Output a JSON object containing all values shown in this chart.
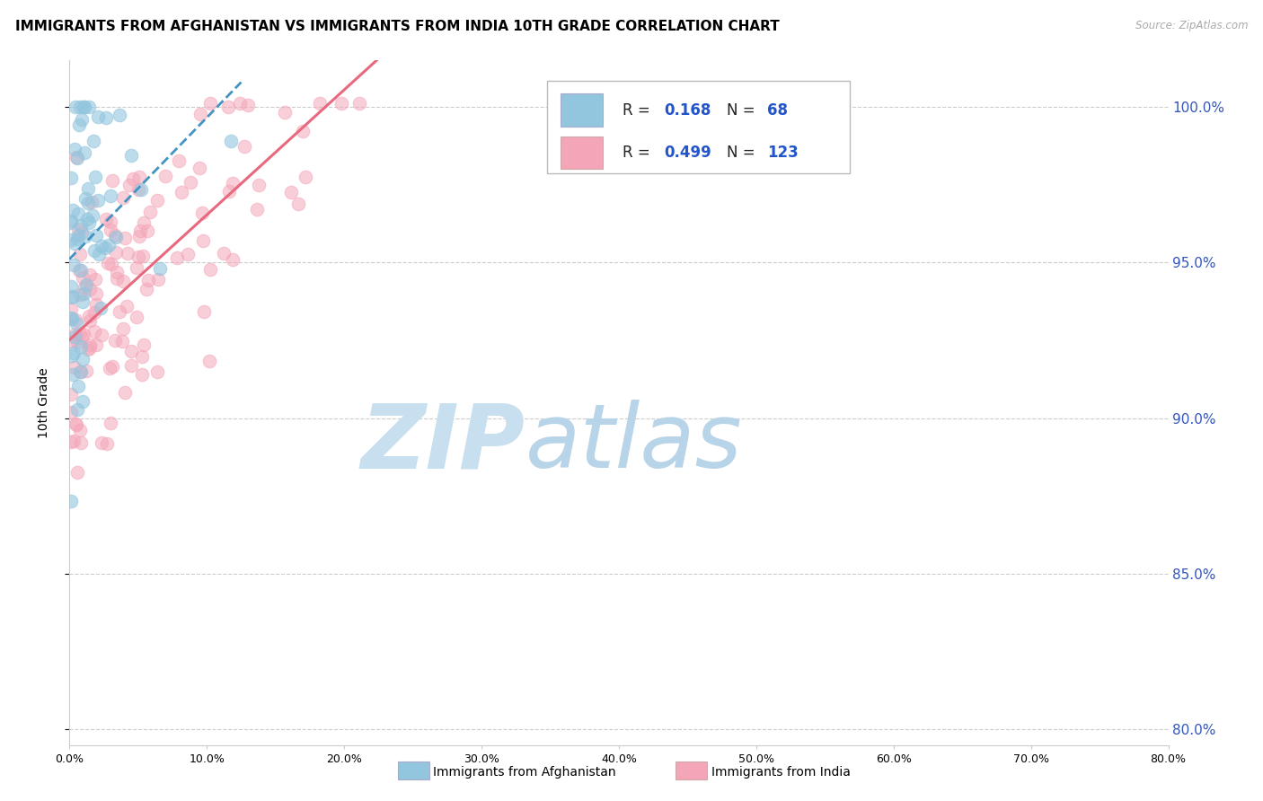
{
  "title": "IMMIGRANTS FROM AFGHANISTAN VS IMMIGRANTS FROM INDIA 10TH GRADE CORRELATION CHART",
  "source": "Source: ZipAtlas.com",
  "ylabel_left": "10th Grade",
  "ylabel_right_ticks": [
    "100.0%",
    "95.0%",
    "90.0%",
    "85.0%",
    "80.0%"
  ],
  "ylabel_right_values": [
    1.0,
    0.95,
    0.9,
    0.85,
    0.8
  ],
  "xlabel_ticks": [
    "0.0%",
    "10.0%",
    "20.0%",
    "30.0%",
    "40.0%",
    "50.0%",
    "60.0%",
    "70.0%",
    "80.0%"
  ],
  "xlabel_values": [
    0.0,
    0.1,
    0.2,
    0.3,
    0.4,
    0.5,
    0.6,
    0.7,
    0.8
  ],
  "xmin": 0.0,
  "xmax": 0.8,
  "ymin": 0.795,
  "ymax": 1.015,
  "legend_blue_label": "Immigrants from Afghanistan",
  "legend_pink_label": "Immigrants from India",
  "R_blue": 0.168,
  "N_blue": 68,
  "R_pink": 0.499,
  "N_pink": 123,
  "blue_color": "#92c5de",
  "pink_color": "#f4a6b8",
  "blue_line_color": "#4393c3",
  "pink_line_color": "#e8697d",
  "watermark_zip": "ZIP",
  "watermark_atlas": "atlas",
  "watermark_color_zip": "#c8dff0",
  "watermark_color_atlas": "#b8d4e8",
  "title_fontsize": 11,
  "axis_label_fontsize": 10,
  "tick_fontsize": 9,
  "legend_fontsize": 11
}
